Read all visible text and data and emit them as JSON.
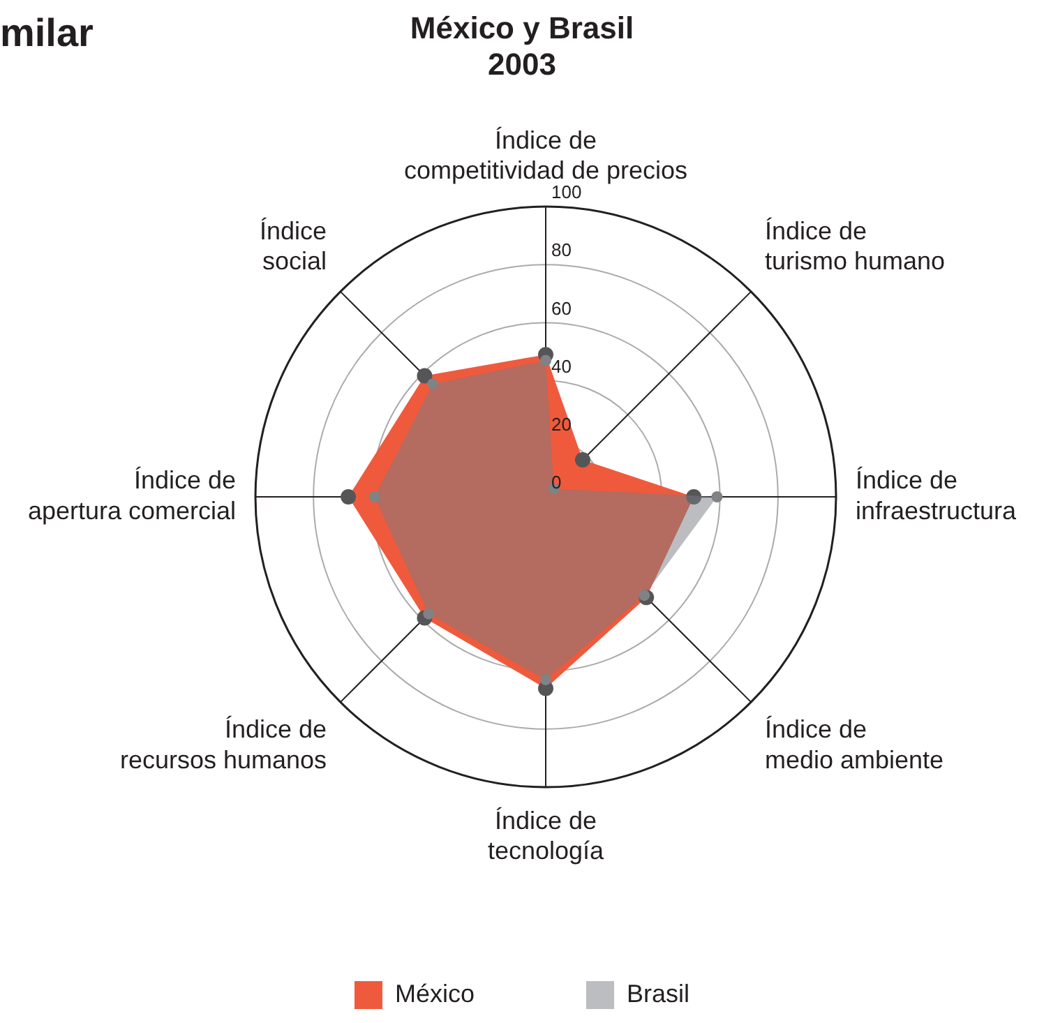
{
  "chart_data": {
    "type": "radar",
    "title": "México y Brasil\n2003",
    "annotations": [
      "milar"
    ],
    "categories": [
      "Índice de\ncompetitividad de precios",
      "Índice de\nturismo humano",
      "Índice de\ninfraestructura",
      "Índice de\nmedio ambiente",
      "Índice de\ntecnología",
      "Índice de\nrecursos humanos",
      "Índice de\napertura comercial",
      "Índice\nsocial"
    ],
    "series": [
      {
        "name": "México",
        "color": "#ef5a3c",
        "values": [
          49,
          18,
          51,
          49,
          66,
          59,
          68,
          59
        ]
      },
      {
        "name": "Brasil",
        "color": "#bcbdc1",
        "values": [
          47,
          4,
          59,
          48,
          63,
          57,
          59,
          55
        ]
      }
    ],
    "ylim": [
      0,
      100
    ],
    "yticks": [
      0,
      20,
      40,
      60,
      80,
      100
    ],
    "grid": true,
    "legend": "bottom",
    "marker": "circle"
  }
}
